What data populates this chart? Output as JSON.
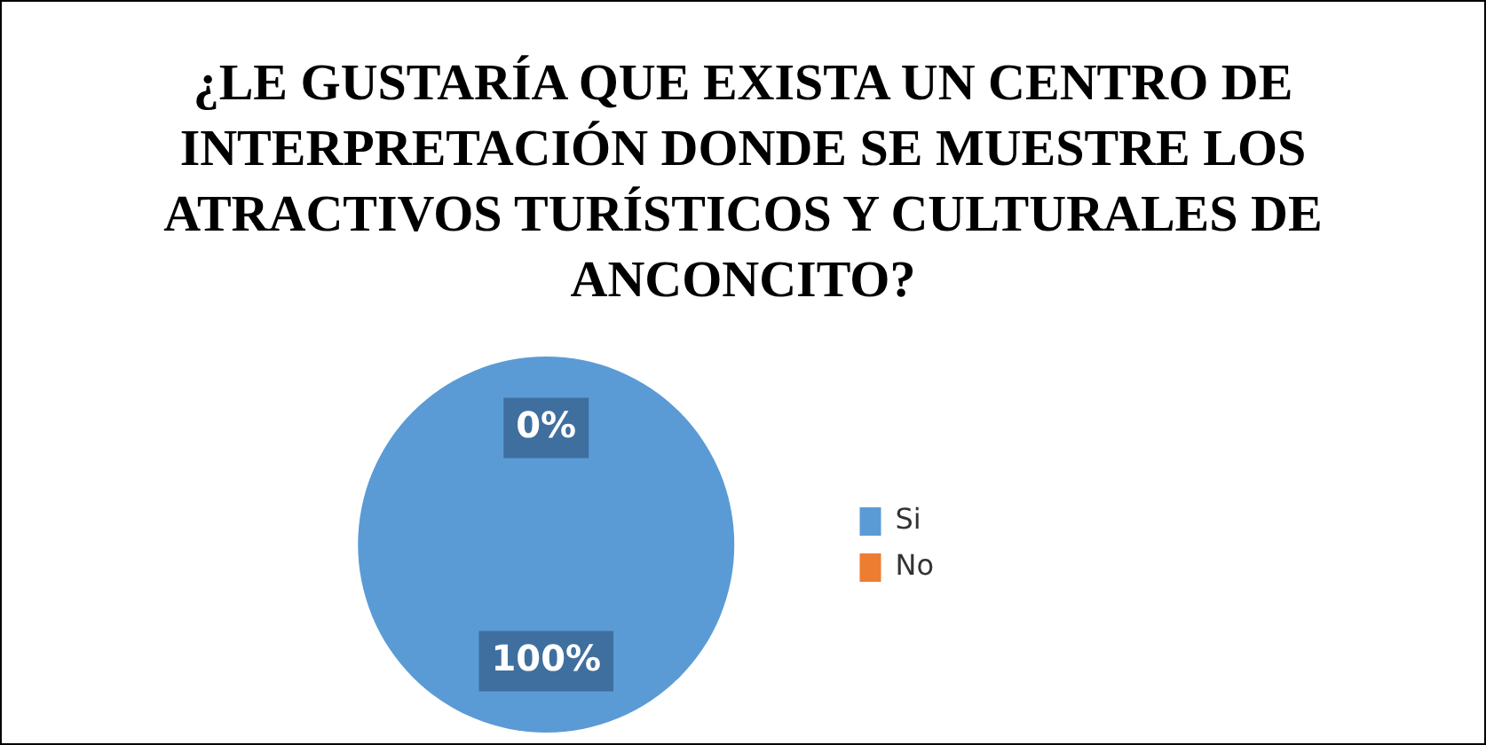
{
  "chart_data": {
    "type": "pie",
    "title": "¿LE GUSTARÍA QUE EXISTA UN CENTRO DE INTERPRETACIÓN DONDE SE MUESTRE LOS ATRACTIVOS TURÍSTICOS Y CULTURALES DE ANCONCITO?",
    "categories": [
      "Si",
      "No"
    ],
    "values": [
      100,
      0
    ],
    "colors": [
      "#5b9bd5",
      "#ed7d31"
    ],
    "value_labels": [
      "100%",
      "0%"
    ],
    "legend": "right"
  }
}
